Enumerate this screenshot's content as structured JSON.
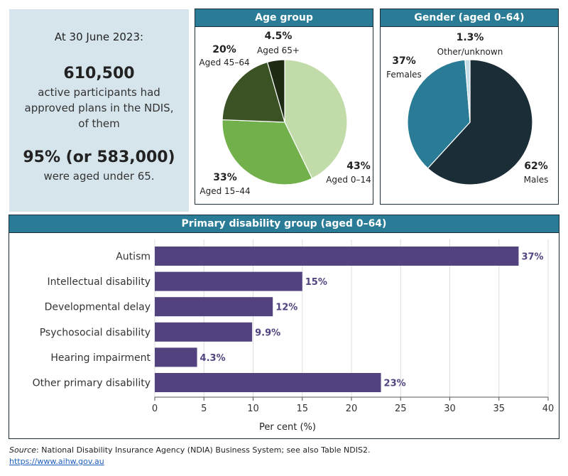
{
  "summary": {
    "date": "At 30 June 2023:",
    "total": "610,500",
    "total_desc": "active participants had approved plans in the NDIS, of them",
    "under65": "95% (or 583,000)",
    "under65_desc": "were aged under 65."
  },
  "colors": {
    "header": "#2a7c96",
    "age": [
      "#c1dca9",
      "#72b04b",
      "#3a5224",
      "#1e2a14"
    ],
    "gender": [
      "#1b2d36",
      "#2a7c96",
      "#c6dce6"
    ],
    "bar": "#52437f"
  },
  "chart_data": [
    {
      "type": "pie",
      "title": "Age group",
      "slices": [
        {
          "label": "Aged 0–14",
          "value": 43,
          "pct_label": "43%"
        },
        {
          "label": "Aged 15–44",
          "value": 33,
          "pct_label": "33%"
        },
        {
          "label": "Aged 45–64",
          "value": 20,
          "pct_label": "20%"
        },
        {
          "label": "Aged 65+",
          "value": 4.5,
          "pct_label": "4.5%"
        }
      ]
    },
    {
      "type": "pie",
      "title": "Gender (aged 0–64)",
      "slices": [
        {
          "label": "Males",
          "value": 62,
          "pct_label": "62%"
        },
        {
          "label": "Females",
          "value": 37,
          "pct_label": "37%"
        },
        {
          "label": "Other/unknown",
          "value": 1.3,
          "pct_label": "1.3%"
        }
      ]
    },
    {
      "type": "bar",
      "orientation": "horizontal",
      "title": "Primary disability group (aged 0–64)",
      "categories": [
        "Autism",
        "Intellectual disability",
        "Developmental delay",
        "Psychosocial disability",
        "Hearing impairment",
        "Other primary disability"
      ],
      "values": [
        37,
        15,
        12,
        9.9,
        4.3,
        23
      ],
      "value_labels": [
        "37%",
        "15%",
        "12%",
        "9.9%",
        "4.3%",
        "23%"
      ],
      "xlabel": "Per cent (%)",
      "xlim": [
        0,
        40
      ],
      "xticks": [
        0,
        5,
        10,
        15,
        20,
        25,
        30,
        35,
        40
      ],
      "grid": true
    }
  ],
  "footer": {
    "source_label": "Source",
    "source_text": ": National Disability Insurance Agency (NDIA) Business System; see also Table NDIS2.",
    "link": "https://www.aihw.gov.au"
  }
}
